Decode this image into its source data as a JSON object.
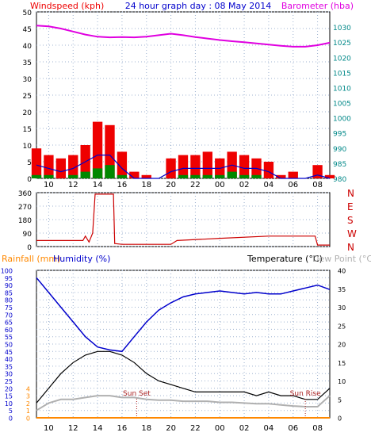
{
  "header": {
    "wind_label": "Windspeed (kph)",
    "title": "24 hour graph day : 08 May 2014",
    "baro_label": "Barometer (hba)"
  },
  "colors": {
    "wind_max": "#ee0000",
    "wind_avg": "#0000cc",
    "wind_min": "#008800",
    "barometer": "#e000e0",
    "direction": "#cc0000",
    "humidity": "#0000cc",
    "temperature": "#000000",
    "dewpoint": "#b0b0b0",
    "rainfall": "#ff8800",
    "tick_teal": "#008888",
    "grid": "#9fb3d0"
  },
  "x_ticks": [
    "10",
    "12",
    "14",
    "16",
    "18",
    "20",
    "22",
    "00",
    "02",
    "04",
    "06",
    "08"
  ],
  "chart_data": [
    {
      "type": "line",
      "title": "24 hour graph day : 08 May 2014",
      "ylabel": "Windspeed (kph)",
      "y2label": "Barometer (hba)",
      "ylim": [
        0,
        50
      ],
      "y2lim": [
        980,
        1035
      ],
      "y_ticks": [
        0,
        5,
        10,
        15,
        20,
        25,
        30,
        35,
        40,
        45,
        50
      ],
      "y2_ticks": [
        980,
        985,
        990,
        995,
        1000,
        1005,
        1010,
        1015,
        1020,
        1025,
        1030
      ],
      "x_hours": [
        9,
        10,
        11,
        12,
        13,
        14,
        15,
        16,
        17,
        18,
        19,
        20,
        21,
        22,
        23,
        24,
        25,
        26,
        27,
        28,
        29,
        30,
        31,
        32,
        33
      ],
      "series": [
        {
          "name": "Windspeed max",
          "values": [
            9,
            7,
            6,
            7,
            10,
            17,
            16,
            8,
            2,
            1,
            0,
            6,
            7,
            7,
            8,
            6,
            8,
            7,
            6,
            5,
            1,
            2,
            0,
            4,
            1
          ]
        },
        {
          "name": "Windspeed avg",
          "values": [
            4,
            3,
            2,
            3,
            5,
            7,
            7,
            3,
            0,
            0,
            0,
            2,
            3,
            3,
            3,
            3,
            4,
            3,
            3,
            2,
            0,
            0,
            0,
            1,
            0
          ]
        },
        {
          "name": "Windspeed min",
          "values": [
            1,
            1,
            0,
            1,
            2,
            3,
            4,
            1,
            0,
            0,
            0,
            0,
            1,
            1,
            1,
            1,
            2,
            1,
            1,
            0,
            0,
            0,
            0,
            0,
            0
          ]
        },
        {
          "name": "Barometer",
          "values": [
            1030.5,
            1030.2,
            1029.5,
            1028.5,
            1027.5,
            1026.8,
            1026.6,
            1026.7,
            1026.6,
            1026.8,
            1027.3,
            1027.8,
            1027.3,
            1026.7,
            1026.2,
            1025.7,
            1025.3,
            1025.0,
            1024.6,
            1024.2,
            1023.8,
            1023.5,
            1023.5,
            1024.0,
            1024.8
          ]
        }
      ]
    },
    {
      "type": "line",
      "ylabel": "Wind direction",
      "y_ticks": [
        0,
        90,
        180,
        270,
        360
      ],
      "y2_ticks": [
        "N",
        "W",
        "S",
        "E",
        "N"
      ],
      "ylim": [
        0,
        360
      ],
      "x_hours": [
        9,
        12.8,
        13,
        13.3,
        13.6,
        13.8,
        14.0,
        15.3,
        15.4,
        16,
        20,
        20.5,
        24,
        28,
        31.8,
        32,
        33
      ],
      "values": [
        40,
        40,
        70,
        30,
        90,
        350,
        350,
        350,
        20,
        15,
        15,
        40,
        55,
        70,
        70,
        10,
        10
      ]
    },
    {
      "type": "line",
      "ylabel": "Humidity (%)",
      "y0label": "Rainfall (mm)",
      "y2label": "Temperature (°C)",
      "y3label": "Dew Point (°C)",
      "ylim": [
        0,
        100
      ],
      "y2lim": [
        0,
        40
      ],
      "y_ticks": [
        0,
        5,
        10,
        15,
        20,
        25,
        30,
        35,
        40,
        45,
        50,
        55,
        60,
        65,
        70,
        75,
        80,
        85,
        90,
        95,
        100
      ],
      "y2_ticks": [
        0,
        5,
        10,
        15,
        20,
        25,
        30,
        35,
        40
      ],
      "annotations": [
        "Sun Set",
        "Sun Rise"
      ],
      "x_hours": [
        9,
        10,
        11,
        12,
        13,
        14,
        15,
        16,
        17,
        18,
        19,
        20,
        21,
        22,
        23,
        24,
        25,
        26,
        27,
        28,
        29,
        30,
        31,
        32,
        33
      ],
      "series": [
        {
          "name": "Humidity",
          "values": [
            95,
            85,
            75,
            65,
            55,
            48,
            46,
            45,
            55,
            65,
            73,
            78,
            82,
            84,
            85,
            86,
            85,
            84,
            85,
            84,
            84,
            86,
            88,
            90,
            87
          ]
        },
        {
          "name": "Temperature",
          "values": [
            4,
            8,
            12,
            15,
            17,
            18,
            18,
            17,
            15,
            12,
            10,
            9,
            8,
            7,
            7,
            7,
            7,
            7,
            6,
            7,
            6,
            6,
            5,
            5,
            8
          ]
        },
        {
          "name": "Dew Point",
          "values": [
            2,
            4,
            5,
            5,
            5.5,
            6,
            6,
            5.5,
            5.5,
            5,
            4.8,
            4.8,
            4.5,
            4.5,
            4.5,
            4.2,
            4.2,
            4,
            3.8,
            3.8,
            3.5,
            3.2,
            3,
            3,
            6
          ]
        },
        {
          "name": "Rainfall",
          "values": [
            0,
            0,
            0,
            0,
            0,
            0,
            0,
            0,
            0,
            0,
            0,
            0,
            0,
            0,
            0,
            0,
            0,
            0,
            0,
            0,
            0,
            0,
            0,
            0,
            0
          ]
        }
      ]
    }
  ]
}
